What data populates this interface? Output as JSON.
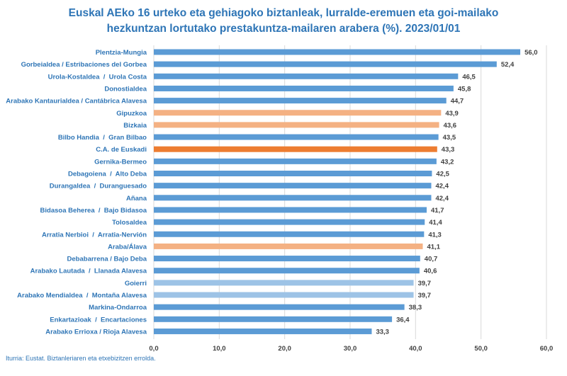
{
  "title_line1": "Euskal AEko 16 urteko eta gehiagoko biztanleak, lurralde-eremuen eta goi-mailako",
  "title_line2": "hezkuntzan lortutako prestakuntza-mailaren arabera (%). 2023/01/01",
  "source": "Iturria: Eustat. Biztanleriaren eta etxebizitzen errolda.",
  "colors": {
    "default": "#5b9bd5",
    "province": "#f4b183",
    "cae": "#ed7d31",
    "light": "#9dc3e6",
    "label_text": "#2e75b6",
    "value_text": "#404040",
    "grid": "#d9d9d9"
  },
  "chart_data": {
    "type": "bar",
    "orientation": "horizontal",
    "xlim": [
      0,
      60
    ],
    "xticks": [
      "0,0",
      "10,0",
      "20,0",
      "30,0",
      "40,0",
      "50,0",
      "60,0"
    ],
    "grid": true,
    "categories": [
      "Plentzia-Mungia",
      "Gorbeialdea / Estribaciones del Gorbea",
      "Urola-Kostaldea  /  Urola Costa",
      "Donostialdea",
      "Arabako Kantaurialdea / Cantábrica Alavesa",
      "Gipuzkoa",
      "Bizkaia",
      "Bilbo Handia  /  Gran Bilbao",
      "C.A. de Euskadi",
      "Gernika-Bermeo",
      "Debagoiena  /  Alto Deba",
      "Durangaldea  /  Duranguesado",
      "Añana",
      "Bidasoa Beherea  /  Bajo Bidasoa",
      "Tolosaldea",
      "Arratia Nerbioi  /  Arratia-Nervión",
      "Araba/Álava",
      "Debabarrena / Bajo Deba",
      "Arabako Lautada  /  Llanada Alavesa",
      "Goierri",
      "Arabako Mendialdea  /  Montaña Alavesa",
      "Markina-Ondarroa",
      "Enkartazioak  /  Encartaciones",
      "Arabako Errioxa / Rioja Alavesa"
    ],
    "values": [
      56.0,
      52.4,
      46.5,
      45.8,
      44.7,
      43.9,
      43.6,
      43.5,
      43.3,
      43.2,
      42.5,
      42.4,
      42.4,
      41.7,
      41.4,
      41.3,
      41.1,
      40.7,
      40.6,
      39.7,
      39.7,
      38.3,
      36.4,
      33.3
    ],
    "value_labels": [
      "56,0",
      "52,4",
      "46,5",
      "45,8",
      "44,7",
      "43,9",
      "43,6",
      "43,5",
      "43,3",
      "43,2",
      "42,5",
      "42,4",
      "42,4",
      "41,7",
      "41,4",
      "41,3",
      "41,1",
      "40,7",
      "40,6",
      "39,7",
      "39,7",
      "38,3",
      "36,4",
      "33,3"
    ],
    "bar_colors": [
      "default",
      "default",
      "default",
      "default",
      "default",
      "province",
      "province",
      "default",
      "cae",
      "default",
      "default",
      "default",
      "default",
      "default",
      "default",
      "default",
      "province",
      "default",
      "default",
      "light",
      "light",
      "default",
      "default",
      "default"
    ]
  }
}
